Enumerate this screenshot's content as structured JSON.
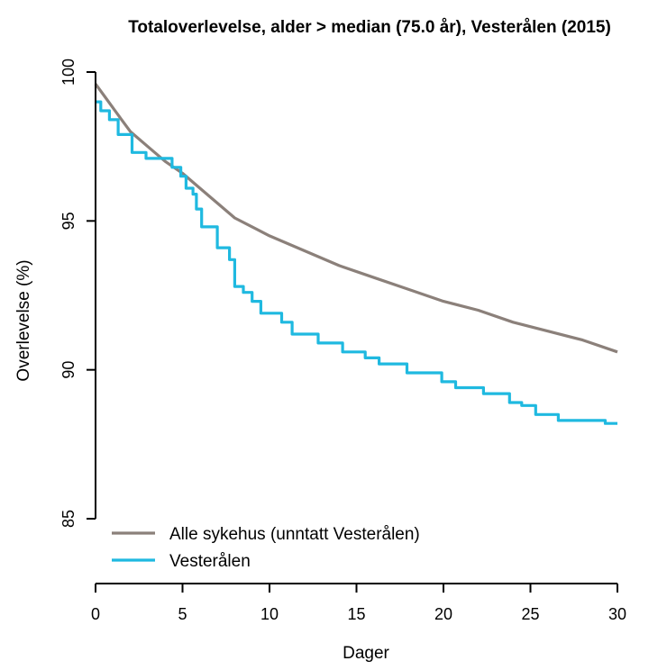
{
  "chart_data": {
    "type": "line",
    "title": "Totaloverlevelse, alder > median (75.0 år), Vesterålen (2015)",
    "xlabel": "Dager",
    "ylabel": "Overlevelse (%)",
    "xlim": [
      0,
      30
    ],
    "ylim": [
      85,
      100
    ],
    "x_ticks": [
      0,
      5,
      10,
      15,
      20,
      25,
      30
    ],
    "y_ticks": [
      85,
      90,
      95,
      100
    ],
    "grid": false,
    "legend_position": "bottom-left",
    "series": [
      {
        "name": "Alle sykehus (unntatt Vesterålen)",
        "color": "#8b807a",
        "step": false,
        "x": [
          0,
          0.5,
          1,
          1.5,
          2,
          3,
          4,
          5,
          6,
          7,
          8,
          9,
          10,
          12,
          14,
          16,
          18,
          20,
          22,
          24,
          26,
          28,
          30
        ],
        "y": [
          99.6,
          99.2,
          98.8,
          98.4,
          98.0,
          97.5,
          97.0,
          96.6,
          96.1,
          95.6,
          95.1,
          94.8,
          94.5,
          94.0,
          93.5,
          93.1,
          92.7,
          92.3,
          92.0,
          91.6,
          91.3,
          91.0,
          90.6
        ]
      },
      {
        "name": "Vesterålen",
        "color": "#1fb9e0",
        "step": true,
        "x": [
          0,
          0.3,
          0.8,
          1.3,
          2.1,
          2.9,
          4.4,
          4.9,
          5.2,
          5.6,
          5.8,
          6.1,
          6.6,
          7.0,
          7.3,
          7.7,
          8.0,
          8.5,
          9.0,
          9.5,
          10.7,
          11.3,
          12.8,
          14.2,
          15.5,
          16.3,
          17.9,
          19.9,
          20.7,
          22.3,
          23.8,
          24.5,
          25.3,
          26.6,
          28.3,
          29.3,
          30
        ],
        "y": [
          99.0,
          98.7,
          98.4,
          97.9,
          97.3,
          97.1,
          96.8,
          96.5,
          96.1,
          95.9,
          95.4,
          94.8,
          94.8,
          94.1,
          94.1,
          93.7,
          92.8,
          92.6,
          92.3,
          91.9,
          91.6,
          91.2,
          90.9,
          90.6,
          90.4,
          90.2,
          89.9,
          89.6,
          89.4,
          89.2,
          88.9,
          88.8,
          88.5,
          88.3,
          88.3,
          88.2,
          88.2
        ]
      }
    ]
  }
}
